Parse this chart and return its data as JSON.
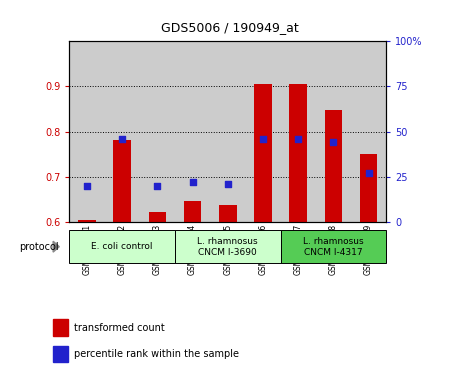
{
  "title": "GDS5006 / 190949_at",
  "samples": [
    "GSM1034601",
    "GSM1034602",
    "GSM1034603",
    "GSM1034604",
    "GSM1034605",
    "GSM1034606",
    "GSM1034607",
    "GSM1034608",
    "GSM1034609"
  ],
  "transformed_count": [
    0.605,
    0.782,
    0.622,
    0.648,
    0.638,
    0.905,
    0.905,
    0.848,
    0.75
  ],
  "percentile_rank": [
    20,
    46,
    20,
    22,
    21,
    46,
    46,
    44,
    27
  ],
  "ylim_left": [
    0.6,
    1.0
  ],
  "ylim_right": [
    0,
    100
  ],
  "yticks_left": [
    0.6,
    0.7,
    0.8,
    0.9
  ],
  "yticks_right": [
    0,
    25,
    50,
    75,
    100
  ],
  "bar_color": "#CC0000",
  "dot_color": "#2222CC",
  "bar_bottom": 0.6,
  "groups": [
    {
      "label": "E. coli control",
      "start": 0,
      "end": 3,
      "color": "#ccffcc"
    },
    {
      "label": "L. rhamnosus\nCNCM I-3690",
      "start": 3,
      "end": 6,
      "color": "#ccffcc"
    },
    {
      "label": "L. rhamnosus\nCNCM I-4317",
      "start": 6,
      "end": 9,
      "color": "#55cc55"
    }
  ],
  "protocol_label": "protocol",
  "legend_bar_label": "transformed count",
  "legend_dot_label": "percentile rank within the sample",
  "tick_label_color_left": "#CC0000",
  "tick_label_color_right": "#2222CC",
  "bg_color_samples": "#cccccc",
  "bg_color_group1": "#ccffcc",
  "bg_color_group2": "#55cc55"
}
